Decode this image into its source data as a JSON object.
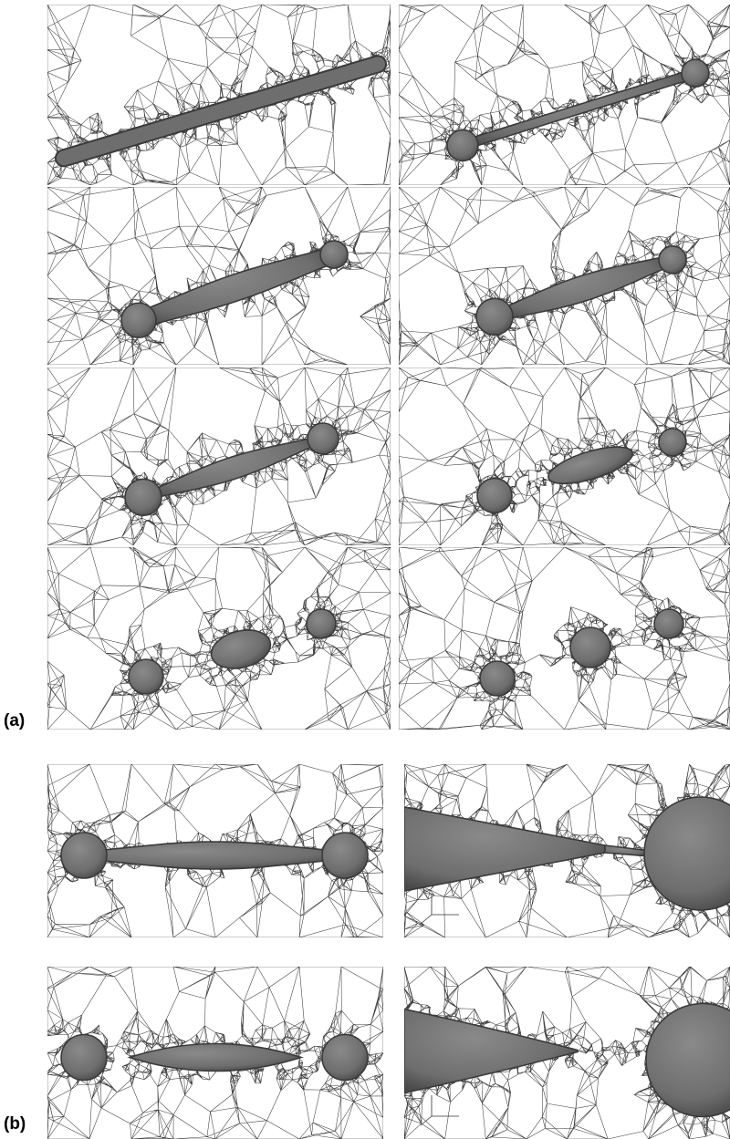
{
  "figure": {
    "part_a_label": "(a)",
    "part_b_label": "(b)",
    "panels": [
      {
        "name": "panel-a1",
        "type": "rod",
        "zoom": false
      },
      {
        "name": "panel-a2",
        "type": "beads",
        "zoom": false,
        "stage": 0
      },
      {
        "name": "panel-a3",
        "type": "beads",
        "zoom": false,
        "stage": 1
      },
      {
        "name": "panel-a4",
        "type": "beads",
        "zoom": false,
        "stage": 2
      },
      {
        "name": "panel-a5",
        "type": "beads",
        "zoom": false,
        "stage": 3
      },
      {
        "name": "panel-a6",
        "type": "split",
        "zoom": false,
        "stage": 0
      },
      {
        "name": "panel-a7",
        "type": "split",
        "zoom": false,
        "stage": 1
      },
      {
        "name": "panel-a8",
        "type": "split",
        "zoom": false,
        "stage": 2
      },
      {
        "name": "panel-b1",
        "type": "neck",
        "zoom": false,
        "pinched": false
      },
      {
        "name": "panel-b2",
        "type": "zoomneck",
        "zoom": true,
        "pinched": false
      },
      {
        "name": "panel-b3",
        "type": "neck",
        "zoom": false,
        "pinched": true
      },
      {
        "name": "panel-b4",
        "type": "zoomneck",
        "zoom": true,
        "pinched": true
      }
    ],
    "colors": {
      "mesh": "#1a1a1a",
      "fluid": "#6e6e6e",
      "fluid_dark": "#3a3a3a",
      "background": "#ffffff"
    }
  }
}
